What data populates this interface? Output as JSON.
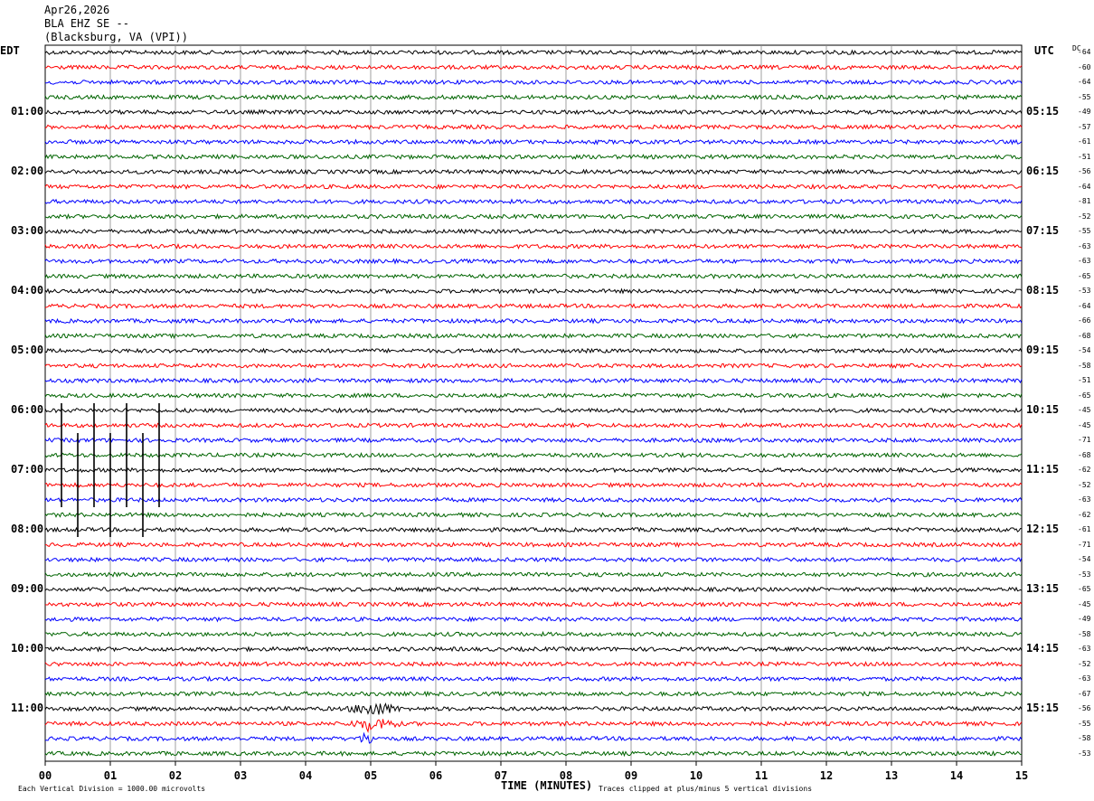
{
  "header": {
    "date": "Apr26,2026",
    "station": "BLA EHZ SE --",
    "location": "(Blacksburg, VA (VPI))"
  },
  "labels": {
    "left_tz": "EDT",
    "right_tz": "UTC",
    "dc": "DC",
    "footer_left": "Each Vertical Division = 1000.00 microvolts",
    "footer_right": "Traces clipped at plus/minus 5 vertical divisions"
  },
  "colors": {
    "trace_cycle": [
      "#000000",
      "#ff0000",
      "#0000ff",
      "#006400"
    ],
    "grid": "#000000",
    "background": "#ffffff"
  },
  "chart_data": {
    "type": "line",
    "title": "BLA EHZ SE --",
    "xlabel": "TIME (MINUTES)",
    "x_ticks": [
      "00",
      "01",
      "02",
      "03",
      "04",
      "05",
      "06",
      "07",
      "08",
      "09",
      "10",
      "11",
      "12",
      "13",
      "14",
      "15"
    ],
    "xlim": [
      0,
      15
    ],
    "rows_per_hour": 4,
    "left_hour_labels": [
      "01:00",
      "02:00",
      "03:00",
      "04:00",
      "05:00",
      "06:00",
      "07:00",
      "08:00",
      "09:00",
      "10:00",
      "11:00"
    ],
    "right_hour_labels": [
      "05:15",
      "06:15",
      "07:15",
      "08:15",
      "09:15",
      "10:15",
      "11:15",
      "12:15",
      "13:15",
      "14:15",
      "15:15"
    ],
    "dc_offsets": [
      -64,
      -60,
      -64,
      -55,
      -49,
      -57,
      -61,
      -51,
      -56,
      -64,
      -81,
      -52,
      -55,
      -63,
      -63,
      -65,
      -53,
      -64,
      -66,
      -68,
      -54,
      -58,
      -51,
      -65,
      -45,
      -45,
      -71,
      -68,
      -62,
      -52,
      -63,
      -62,
      -61,
      -71,
      -54,
      -53,
      -65,
      -45,
      -49,
      -58,
      -63,
      -52,
      -63,
      -67,
      -56,
      -55,
      -58,
      -53
    ],
    "events": [
      {
        "row": 44.5,
        "start_min": 4.6,
        "end_min": 5.5,
        "note": "burst"
      },
      {
        "row": 45.5,
        "start_min": 4.8,
        "end_min": 5.1
      }
    ],
    "spikes_minutes": [
      0.25,
      0.5,
      0.75,
      1.0,
      1.25,
      1.5,
      1.75
    ],
    "spike_rows": [
      24,
      25,
      26,
      27,
      28,
      29,
      30,
      31,
      32
    ]
  }
}
